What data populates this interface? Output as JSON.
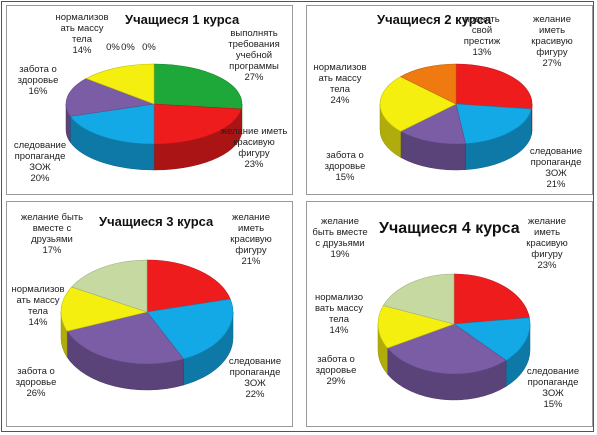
{
  "chart_data": [
    {
      "type": "pie",
      "title": "Учащиеся 1 курса",
      "slices": [
        {
          "label": "выполнять требования учебной программы",
          "value": 27,
          "color": "#1fa83a"
        },
        {
          "label": "желание иметь красивую фигуру",
          "value": 23,
          "color": "#ee1c1c"
        },
        {
          "label": "следование пропаганде ЗОЖ",
          "value": 20,
          "color": "#13a8e6"
        },
        {
          "label": "забота о здоровье",
          "value": 16,
          "color": "#7b5da6"
        },
        {
          "label": "нормализов ать массу тела",
          "value": 14,
          "color": "#f5ef0f"
        },
        {
          "label": "",
          "value": 0,
          "color": "#999999"
        },
        {
          "label": "",
          "value": 0,
          "color": "#999999"
        },
        {
          "label": "",
          "value": 0,
          "color": "#999999"
        }
      ],
      "pct_labels": [
        "27%",
        "23%",
        "20%",
        "16%",
        "14%",
        "0%",
        "0%",
        "0%"
      ]
    },
    {
      "type": "pie",
      "title": "Учащиеся 2 курса",
      "slices": [
        {
          "label": "желание иметь красивую фигуру",
          "value": 27,
          "color": "#ee1c1c"
        },
        {
          "label": "следование пропаганде ЗОЖ",
          "value": 21,
          "color": "#13a8e6"
        },
        {
          "label": "забота о здоровье",
          "value": 15,
          "color": "#7b5da6"
        },
        {
          "label": "нормализов ать массу тела",
          "value": 24,
          "color": "#f5ef0f"
        },
        {
          "label": "поднять свой престиж",
          "value": 13,
          "color": "#ef7b10"
        }
      ],
      "pct_labels": [
        "27%",
        "21%",
        "15%",
        "24%",
        "13%"
      ]
    },
    {
      "type": "pie",
      "title": "Учащиеся 3 курса",
      "slices": [
        {
          "label": "желание иметь красивую фигуру",
          "value": 21,
          "color": "#ee1c1c"
        },
        {
          "label": "следование пропаганде ЗОЖ",
          "value": 22,
          "color": "#13a8e6"
        },
        {
          "label": "забота о здоровье",
          "value": 26,
          "color": "#7b5da6"
        },
        {
          "label": "нормализов ать массу тела",
          "value": 14,
          "color": "#f5ef0f"
        },
        {
          "label": "желание быть вместе с друзьями",
          "value": 17,
          "color": "#c5d9a0"
        }
      ],
      "pct_labels": [
        "21%",
        "22%",
        "26%",
        "14%",
        "17%"
      ]
    },
    {
      "type": "pie",
      "title": "Учащиеся 4 курса",
      "slices": [
        {
          "label": "желание иметь красивую фигуру",
          "value": 23,
          "color": "#ee1c1c"
        },
        {
          "label": "следование пропаганде ЗОЖ",
          "value": 15,
          "color": "#13a8e6"
        },
        {
          "label": "забота о здоровье",
          "value": 29,
          "color": "#7b5da6"
        },
        {
          "label": "нормализо вать массу тела",
          "value": 14,
          "color": "#f5ef0f"
        },
        {
          "label": "желание быть вместе с друзьями",
          "value": 19,
          "color": "#c5d9a0"
        }
      ],
      "pct_labels": [
        "23%",
        "15%",
        "29%",
        "14%",
        "19%"
      ]
    }
  ]
}
